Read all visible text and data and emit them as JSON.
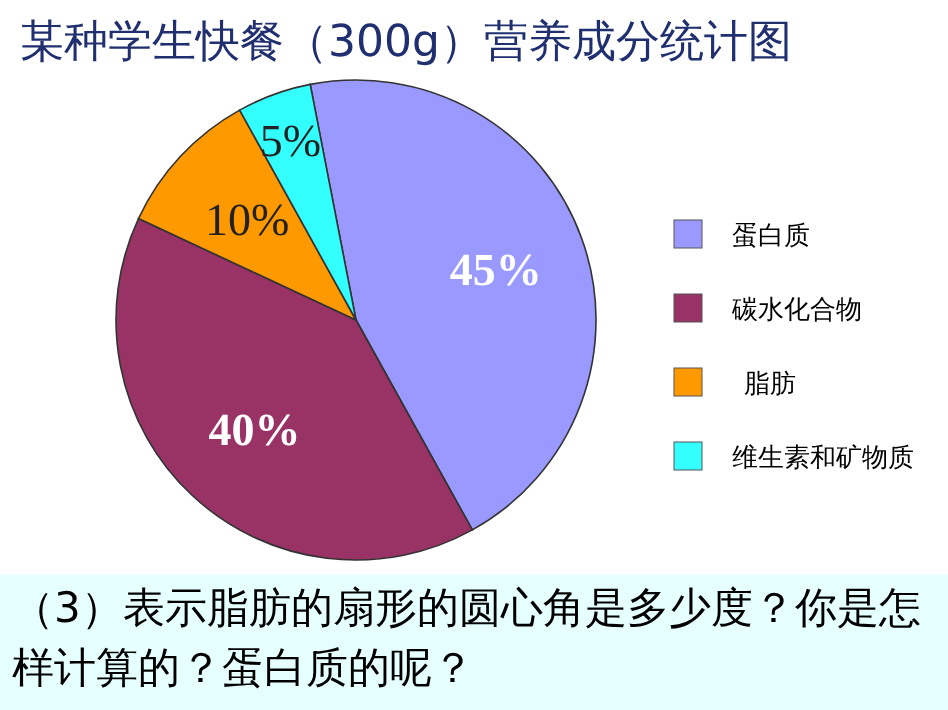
{
  "chart_data": {
    "type": "pie",
    "title": "某种学生快餐（300g）营养成分统计图",
    "categories": [
      "蛋白质",
      "碳水化合物",
      "脂肪",
      "维生素和矿物质"
    ],
    "values": [
      45,
      40,
      10,
      5
    ],
    "colors": [
      "#9999ff",
      "#993366",
      "#ff9900",
      "#33ffff"
    ],
    "value_labels": [
      "45%",
      "40%",
      "10%",
      "5%"
    ],
    "legend": "right",
    "annotations": [
      "（3）表示脂肪的扇形的圆心角是多少度？你是怎样计算的？蛋白质的呢？"
    ]
  }
}
